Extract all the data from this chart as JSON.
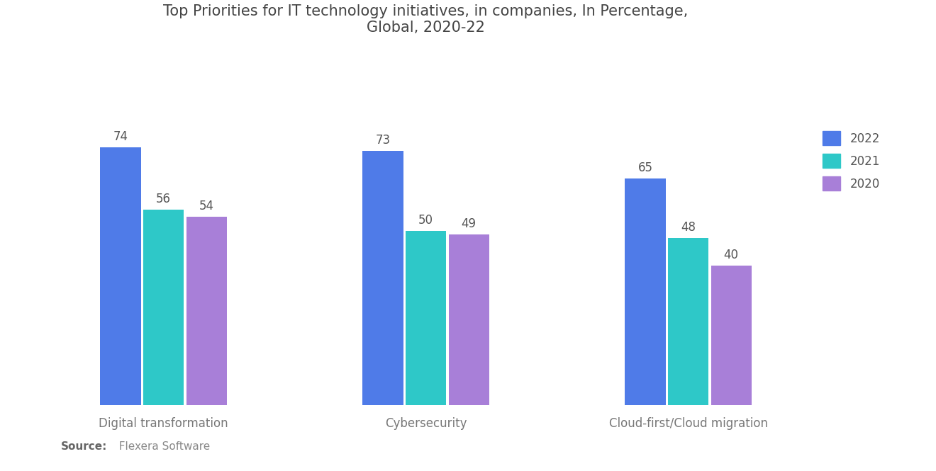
{
  "title": "Top Priorities for IT technology initiatives, in companies, In Percentage,\nGlobal, 2020-22",
  "categories": [
    "Digital transformation",
    "Cybersecurity",
    "Cloud-first/Cloud migration"
  ],
  "series": {
    "2022": [
      74,
      73,
      65
    ],
    "2021": [
      56,
      50,
      48
    ],
    "2020": [
      54,
      49,
      40
    ]
  },
  "colors": {
    "2022": "#4F7BE8",
    "2021": "#2EC8C8",
    "2020": "#A87FD8"
  },
  "legend_labels": [
    "2022",
    "2021",
    "2020"
  ],
  "source_bold": "Source:",
  "source_rest": "  Flexera Software",
  "background_color": "#FFFFFF",
  "bar_width": 0.18,
  "ylim": [
    0,
    100
  ],
  "title_fontsize": 15,
  "category_fontsize": 12,
  "value_fontsize": 12,
  "legend_fontsize": 12,
  "source_fontsize": 11
}
